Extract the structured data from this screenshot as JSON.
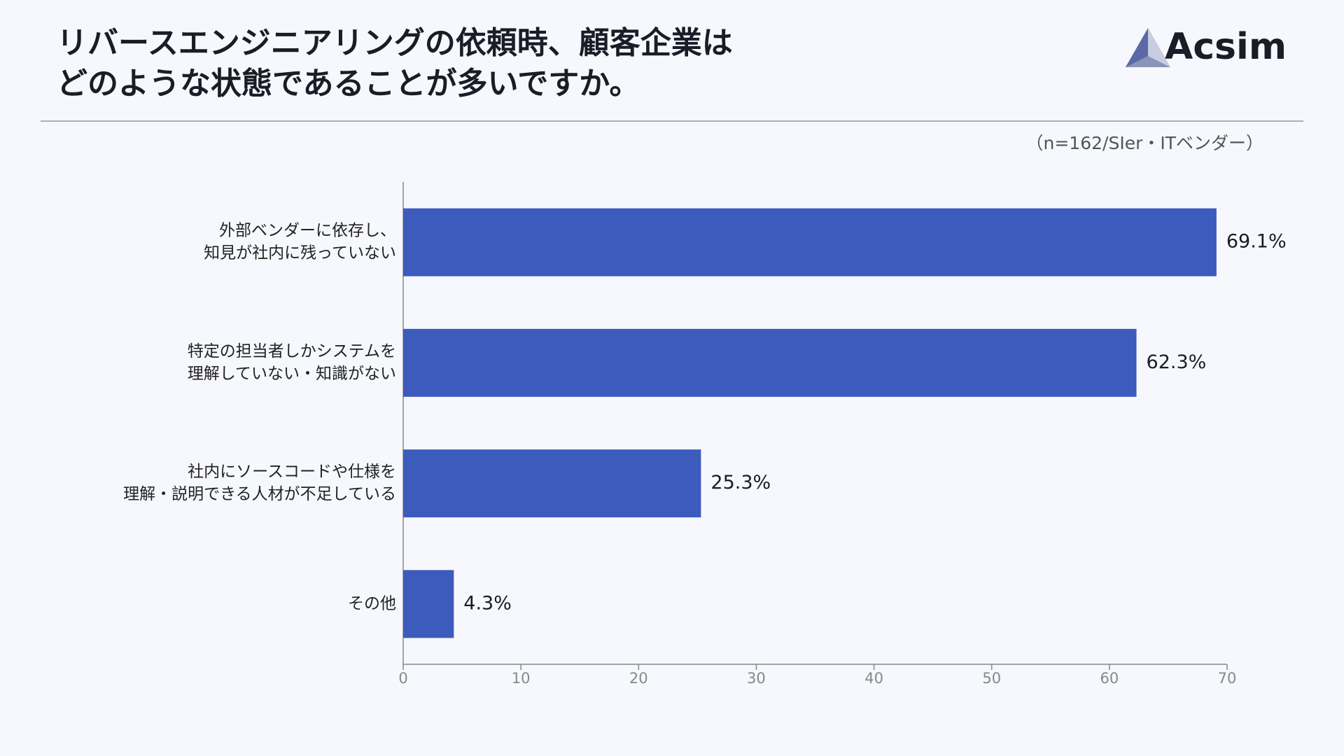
{
  "chart_data": {
    "type": "barh",
    "title": [
      "リバースエンジニアリングの依頼時、顧客企業は",
      "どのような状態であることが多いですか。"
    ],
    "subtitle": "（n=162/SIer・ITベンダー）",
    "logo": "Acsim",
    "categories": [
      [
        "外部ベンダーに依存し、",
        "知見が社内に残っていない"
      ],
      [
        "特定の担当者しかシステムを",
        "理解していない・知識がない"
      ],
      [
        "社内にソースコードや仕様を",
        "理解・説明できる人材が不足している"
      ],
      [
        "その他"
      ]
    ],
    "values": [
      69.1,
      62.3,
      25.3,
      4.3
    ],
    "value_labels": [
      "69.1%",
      "62.3%",
      "25.3%",
      "4.3%"
    ],
    "color": "#3d5bbd",
    "xlim": [
      0,
      70
    ],
    "xticks": [
      0,
      10,
      20,
      30,
      40,
      50,
      60,
      70
    ],
    "grid": false
  }
}
